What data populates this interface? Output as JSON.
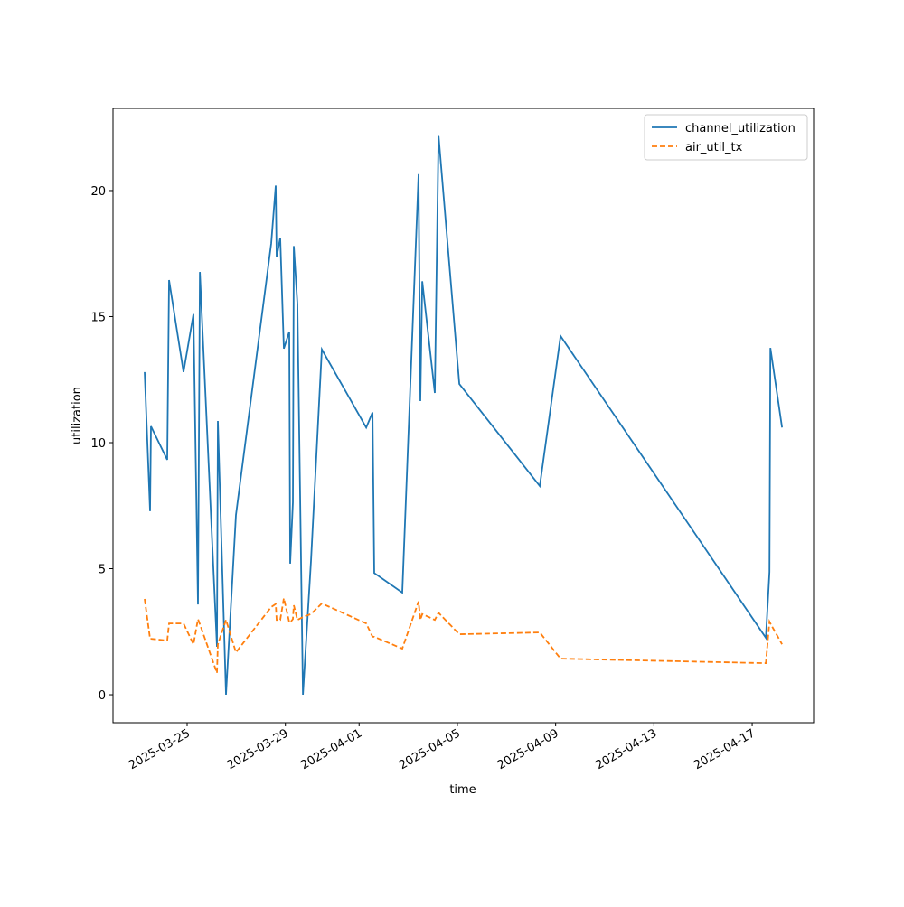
{
  "chart_data": {
    "type": "line",
    "x_label": "time",
    "y_label": "utilization",
    "x": [
      "2025-03-23T06:30",
      "2025-03-23T11:50",
      "2025-03-23T12:40",
      "2025-03-24T04:35",
      "2025-03-24T06:20",
      "2025-03-24T20:30",
      "2025-03-25T06:10",
      "2025-03-25T10:35",
      "2025-03-25T12:25",
      "2025-03-26T05:10",
      "2025-03-26T06:00",
      "2025-03-26T14:00",
      "2025-03-26T23:40",
      "2025-03-28T10:10",
      "2025-03-28T14:35",
      "2025-03-28T15:25",
      "2025-03-28T19:00",
      "2025-03-28T22:30",
      "2025-03-29T03:50",
      "2025-03-29T04:40",
      "2025-03-29T07:20",
      "2025-03-29T08:10",
      "2025-03-29T11:45",
      "2025-03-29T17:05",
      "2025-03-30T01:00",
      "2025-03-30T11:35",
      "2025-04-01T06:55",
      "2025-04-01T13:05",
      "2025-04-01T14:50",
      "2025-04-02T18:10",
      "2025-04-03T10:05",
      "2025-04-03T11:50",
      "2025-04-03T13:40",
      "2025-04-04T02:00",
      "2025-04-04T05:35",
      "2025-04-05T01:55",
      "2025-04-08T08:30",
      "2025-04-09T04:50",
      "2025-04-17T13:20",
      "2025-04-17T16:55",
      "2025-04-17T17:45",
      "2025-04-18T05:10"
    ],
    "series": [
      {
        "name": "channel_utilization",
        "color": "#1f77b4",
        "dash": false,
        "values": [
          12.8,
          7.28,
          10.65,
          9.32,
          16.45,
          12.8,
          15.1,
          3.58,
          16.77,
          1.9,
          10.86,
          0,
          7.13,
          17.9,
          20.2,
          17.35,
          18.13,
          13.73,
          14.4,
          5.2,
          7.63,
          17.8,
          15.5,
          0,
          5.3,
          13.7,
          10.6,
          11.2,
          4.83,
          4.05,
          20.65,
          11.65,
          16.4,
          11.97,
          22.2,
          12.33,
          8.28,
          14.23,
          2.26,
          4.87,
          13.76,
          10.6
        ]
      },
      {
        "name": "air_util_tx",
        "color": "#ff7f0e",
        "dash": true,
        "values": [
          3.8,
          2.22,
          2.22,
          2.15,
          2.83,
          2.83,
          2.0,
          3.0,
          2.8,
          0.86,
          2.0,
          2.97,
          1.68,
          3.48,
          3.6,
          2.97,
          2.97,
          3.83,
          2.87,
          2.87,
          3.0,
          3.55,
          2.97,
          3.08,
          3.2,
          3.62,
          2.83,
          2.3,
          2.3,
          1.83,
          3.7,
          2.97,
          3.2,
          2.97,
          3.25,
          2.4,
          2.47,
          1.43,
          1.25,
          2.9,
          2.83,
          2.0
        ]
      }
    ],
    "xlim": [
      "2025-03-21T23:35",
      "2025-04-19T12:00"
    ],
    "xticks": [
      "2025-03-25",
      "2025-03-29",
      "2025-04-01",
      "2025-04-05",
      "2025-04-09",
      "2025-04-13",
      "2025-04-17"
    ],
    "ylim": [
      -1.11,
      23.26
    ],
    "yticks": [
      0,
      5,
      10,
      15,
      20
    ],
    "legend": "upper right",
    "grid": false
  }
}
